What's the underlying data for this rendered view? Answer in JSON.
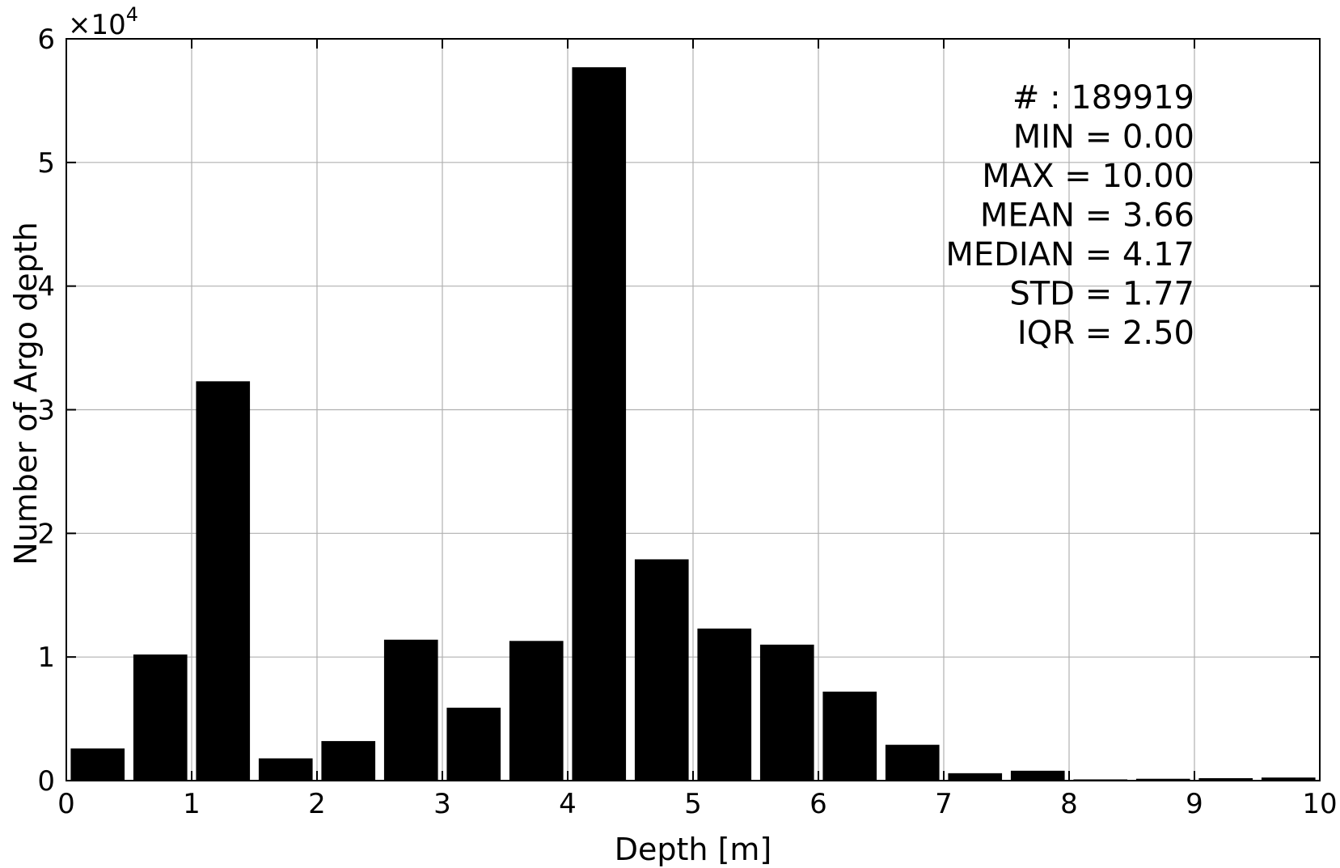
{
  "chart_data": {
    "type": "bar",
    "xlabel": "Depth [m]",
    "ylabel": "Number of Argo depth",
    "xlim": [
      0,
      10
    ],
    "ylim": [
      0,
      60000
    ],
    "x_ticks": [
      0,
      1,
      2,
      3,
      4,
      5,
      6,
      7,
      8,
      9,
      10
    ],
    "y_ticks": [
      0,
      1,
      2,
      3,
      4,
      5,
      6
    ],
    "y_multiplier": "×10",
    "y_multiplier_exponent": "4",
    "grid": true,
    "bar_color": "#000000",
    "bin_width": 0.5,
    "bins": [
      {
        "x_start": 0.0,
        "x_end": 0.5,
        "value": 2600
      },
      {
        "x_start": 0.5,
        "x_end": 1.0,
        "value": 10200
      },
      {
        "x_start": 1.0,
        "x_end": 1.5,
        "value": 32300
      },
      {
        "x_start": 1.5,
        "x_end": 2.0,
        "value": 1800
      },
      {
        "x_start": 2.0,
        "x_end": 2.5,
        "value": 3200
      },
      {
        "x_start": 2.5,
        "x_end": 3.0,
        "value": 11400
      },
      {
        "x_start": 3.0,
        "x_end": 3.5,
        "value": 5900
      },
      {
        "x_start": 3.5,
        "x_end": 4.0,
        "value": 11300
      },
      {
        "x_start": 4.0,
        "x_end": 4.5,
        "value": 57700
      },
      {
        "x_start": 4.5,
        "x_end": 5.0,
        "value": 17900
      },
      {
        "x_start": 5.0,
        "x_end": 5.5,
        "value": 12300
      },
      {
        "x_start": 5.5,
        "x_end": 6.0,
        "value": 11000
      },
      {
        "x_start": 6.0,
        "x_end": 6.5,
        "value": 7200
      },
      {
        "x_start": 6.5,
        "x_end": 7.0,
        "value": 2900
      },
      {
        "x_start": 7.0,
        "x_end": 7.5,
        "value": 600
      },
      {
        "x_start": 7.5,
        "x_end": 8.0,
        "value": 800
      },
      {
        "x_start": 8.0,
        "x_end": 8.5,
        "value": 100
      },
      {
        "x_start": 8.5,
        "x_end": 9.0,
        "value": 150
      },
      {
        "x_start": 9.0,
        "x_end": 9.5,
        "value": 200
      },
      {
        "x_start": 9.5,
        "x_end": 10.0,
        "value": 250
      }
    ],
    "annotations": [
      "# : 189919",
      "MIN = 0.00",
      "MAX =  10.00",
      "MEAN = 3.66",
      "MEDIAN = 4.17",
      "STD = 1.77",
      "IQR = 2.50"
    ]
  }
}
